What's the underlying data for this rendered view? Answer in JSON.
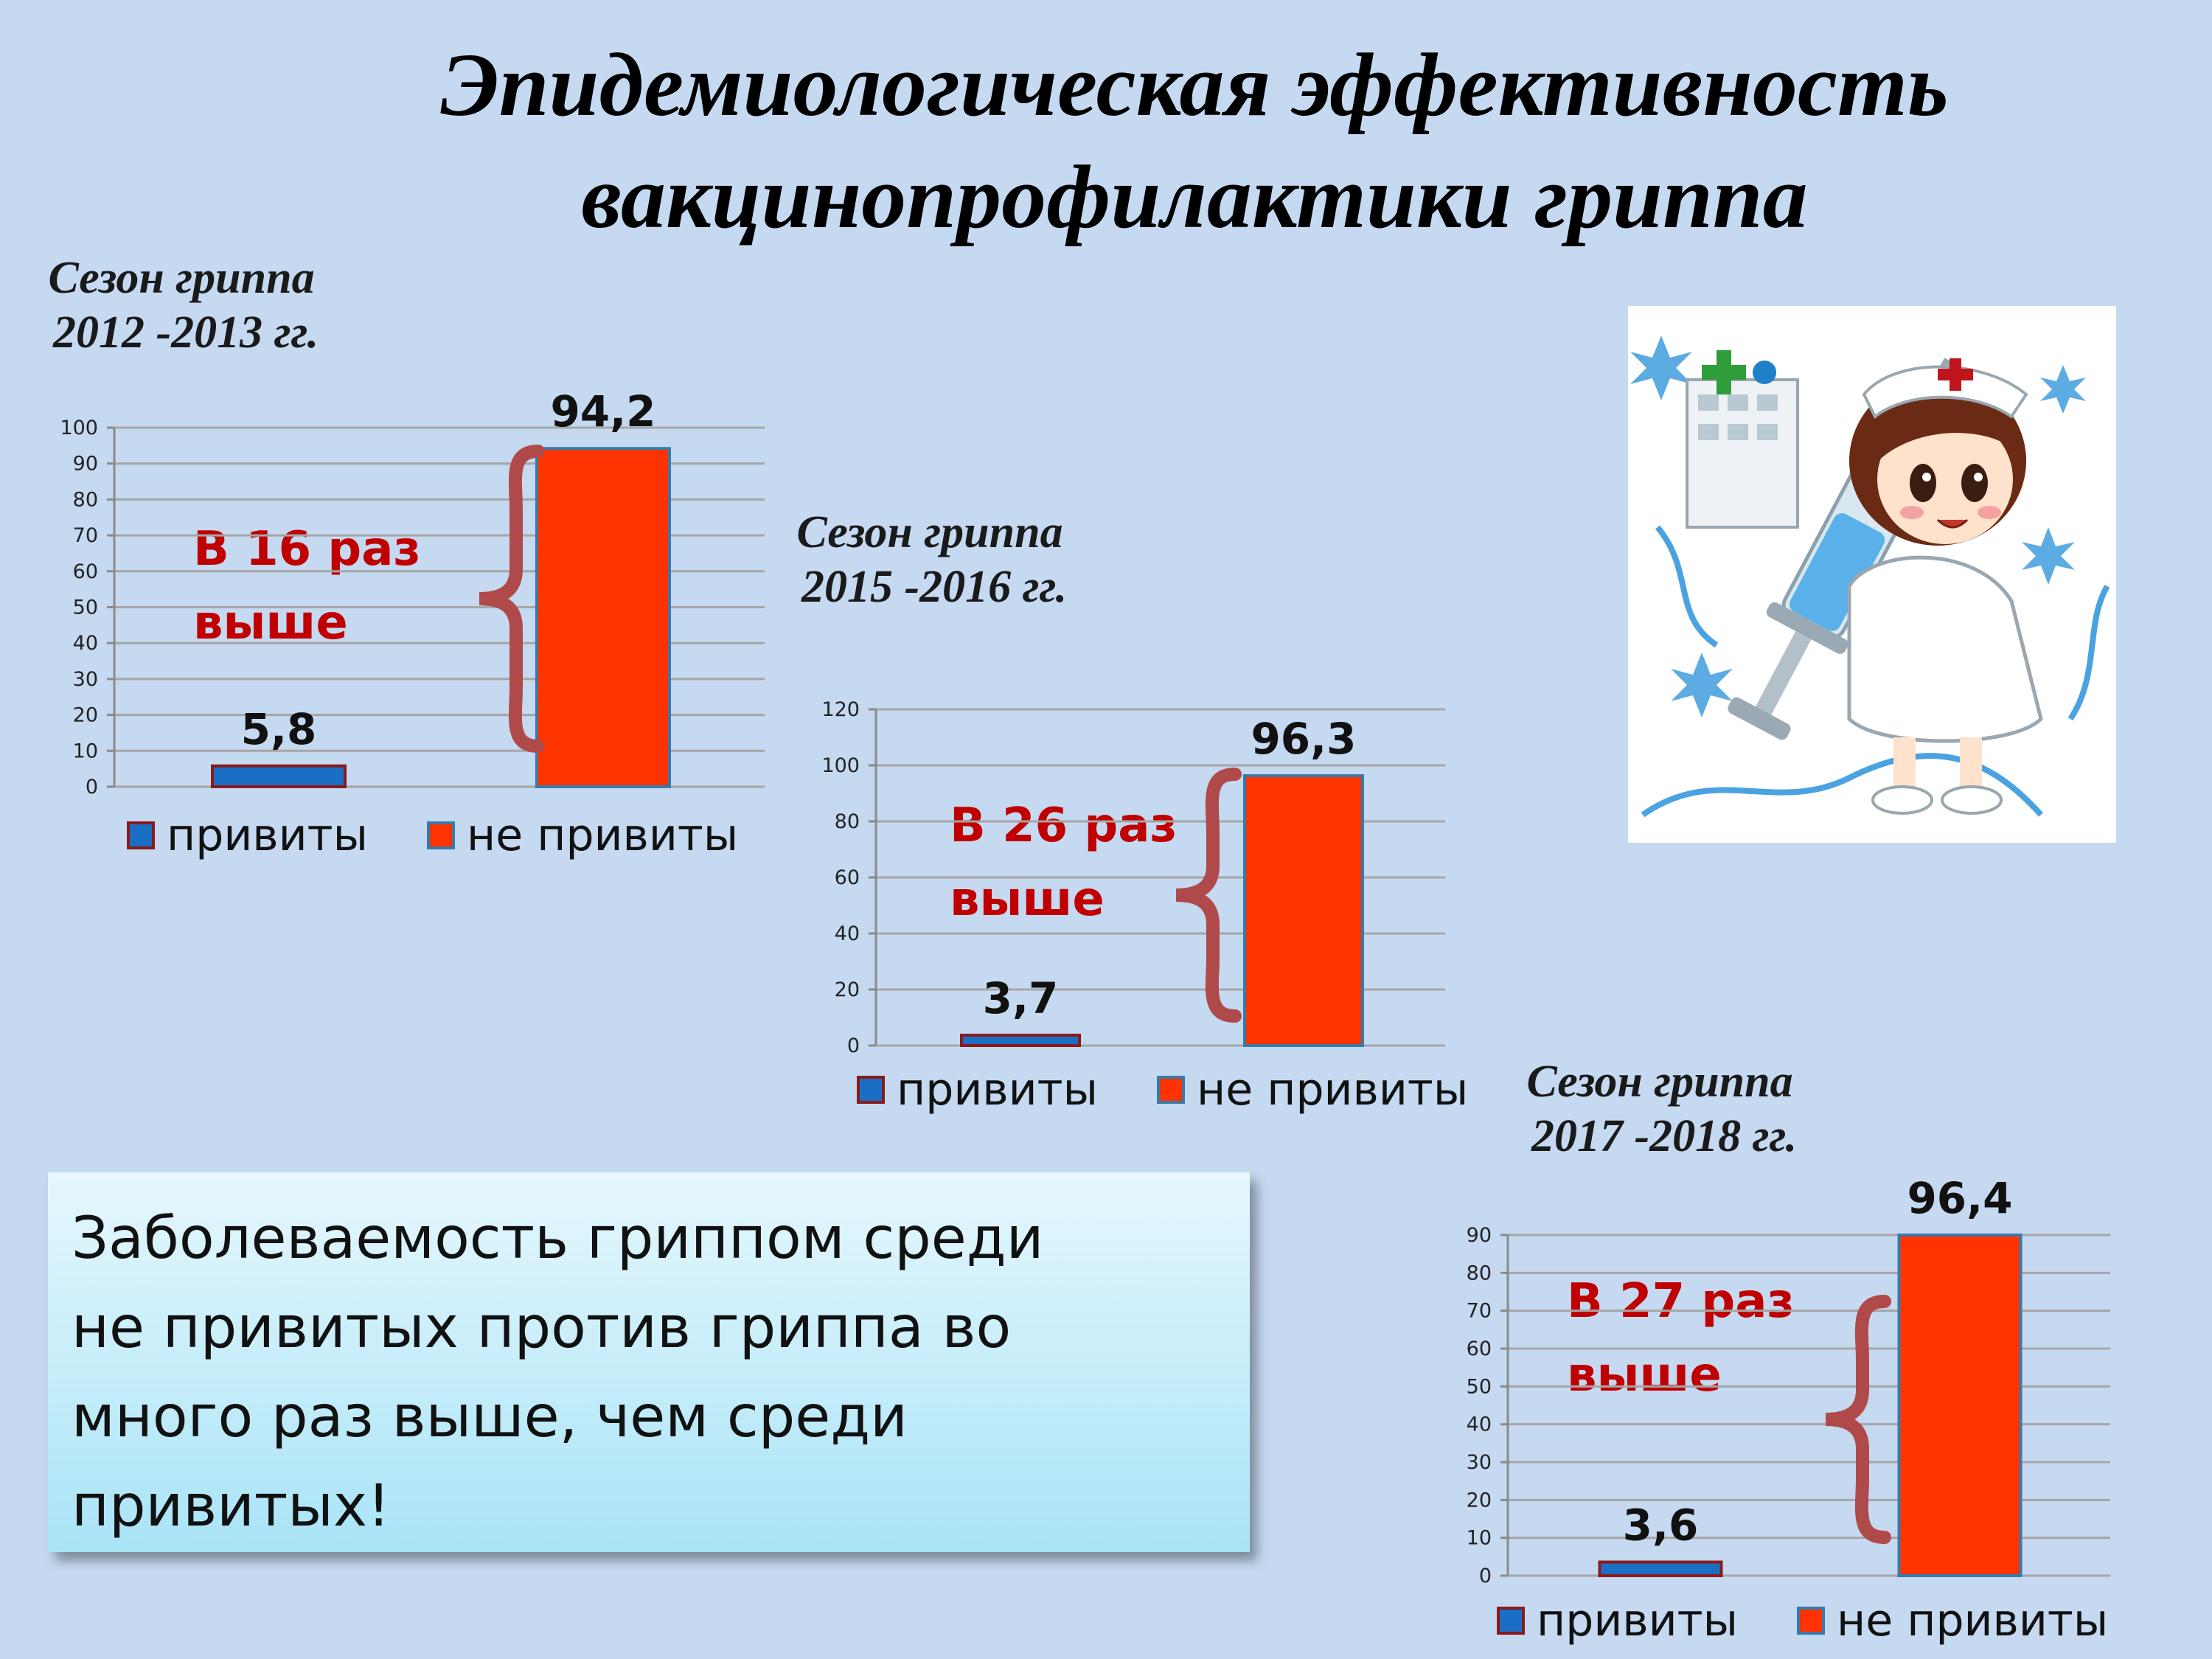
{
  "title": {
    "line1": "Эпидемиологическая эффективность",
    "line2": "вакцинопрофилактики гриппа"
  },
  "callout": {
    "line1": "Заболеваемость гриппом среди",
    "line2": "не привитых против гриппа во",
    "line3": "много раз выше, чем среди",
    "line4": "привитых!"
  },
  "colors": {
    "vaccinated": "#1a6fc4",
    "unvaccinated": "#ff3300",
    "ratio_text": "#c00000",
    "background": "#c5d9f1"
  },
  "picture": {
    "icon": "nurse-with-syringe-icon"
  },
  "chart_data": [
    {
      "type": "bar",
      "season_line1": "Сезон гриппа",
      "season_line2": "2012 -2013 гг.",
      "categories": [
        "привиты",
        "не привиты"
      ],
      "values": [
        5.8,
        94.2
      ],
      "value_labels": [
        "5,8",
        "94,2"
      ],
      "ylim": [
        0,
        100
      ],
      "yticks": [
        0,
        10,
        20,
        30,
        40,
        50,
        60,
        70,
        80,
        90,
        100
      ],
      "ratio_line1": "В 16 раз",
      "ratio_line2": "выше",
      "legend": [
        "привиты",
        "не привиты"
      ],
      "grid": true,
      "legend_position": "bottom"
    },
    {
      "type": "bar",
      "season_line1": "Сезон гриппа",
      "season_line2": "2015 -2016 гг.",
      "categories": [
        "привиты",
        "не привиты"
      ],
      "values": [
        3.7,
        96.3
      ],
      "value_labels": [
        "3,7",
        "96,3"
      ],
      "ylim": [
        0,
        120
      ],
      "yticks": [
        0,
        20,
        40,
        60,
        80,
        100,
        120
      ],
      "ratio_line1": "В 26 раз",
      "ratio_line2": "выше",
      "legend": [
        "привиты",
        "не привиты"
      ],
      "grid": true,
      "legend_position": "bottom"
    },
    {
      "type": "bar",
      "season_line1": "Сезон гриппа",
      "season_line2": "2017 -2018 гг.",
      "categories": [
        "привиты",
        "не привиты"
      ],
      "values": [
        3.6,
        96.4
      ],
      "value_labels": [
        "3,6",
        "96,4"
      ],
      "ylim": [
        0,
        90
      ],
      "yticks": [
        0,
        10,
        20,
        30,
        40,
        50,
        60,
        70,
        80,
        90
      ],
      "ratio_line1": "В 27 раз",
      "ratio_line2": "выше",
      "legend": [
        "привиты",
        "не привиты"
      ],
      "grid": true,
      "legend_position": "bottom"
    }
  ]
}
